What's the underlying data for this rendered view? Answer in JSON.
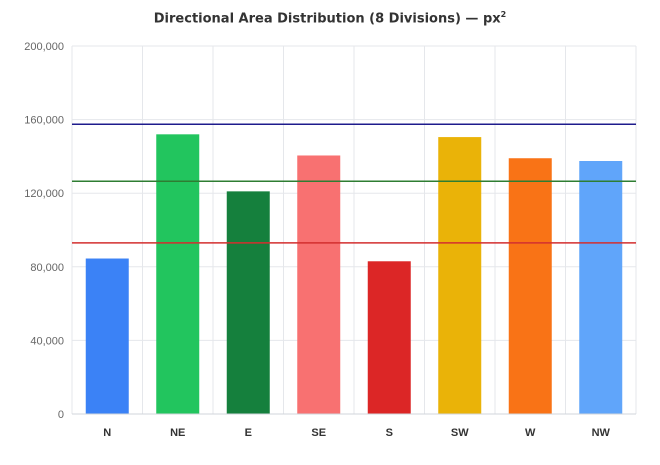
{
  "chart_data": {
    "type": "bar",
    "title": "Directional Area Distribution (8 Divisions) — px",
    "title_superscript": "2",
    "categories": [
      "N",
      "NE",
      "E",
      "SE",
      "S",
      "SW",
      "W",
      "NW"
    ],
    "values": [
      84500,
      152000,
      121000,
      140500,
      83000,
      150500,
      139000,
      137500
    ],
    "colors": [
      "#3b82f6",
      "#22c55e",
      "#15803d",
      "#f87171",
      "#dc2626",
      "#eab308",
      "#f97316",
      "#60a5fa"
    ],
    "ylim": [
      0,
      200000
    ],
    "yticks": [
      "0",
      "40,000",
      "80,000",
      "120,000",
      "160,000",
      "200,000"
    ],
    "ytick_values": [
      0,
      40000,
      80000,
      120000,
      160000,
      200000
    ],
    "grid": true,
    "reference_lines": [
      {
        "value": 157500,
        "color": "#1e1b8c"
      },
      {
        "value": 126500,
        "color": "#2e7d32"
      },
      {
        "value": 93000,
        "color": "#d32f2f"
      }
    ]
  }
}
